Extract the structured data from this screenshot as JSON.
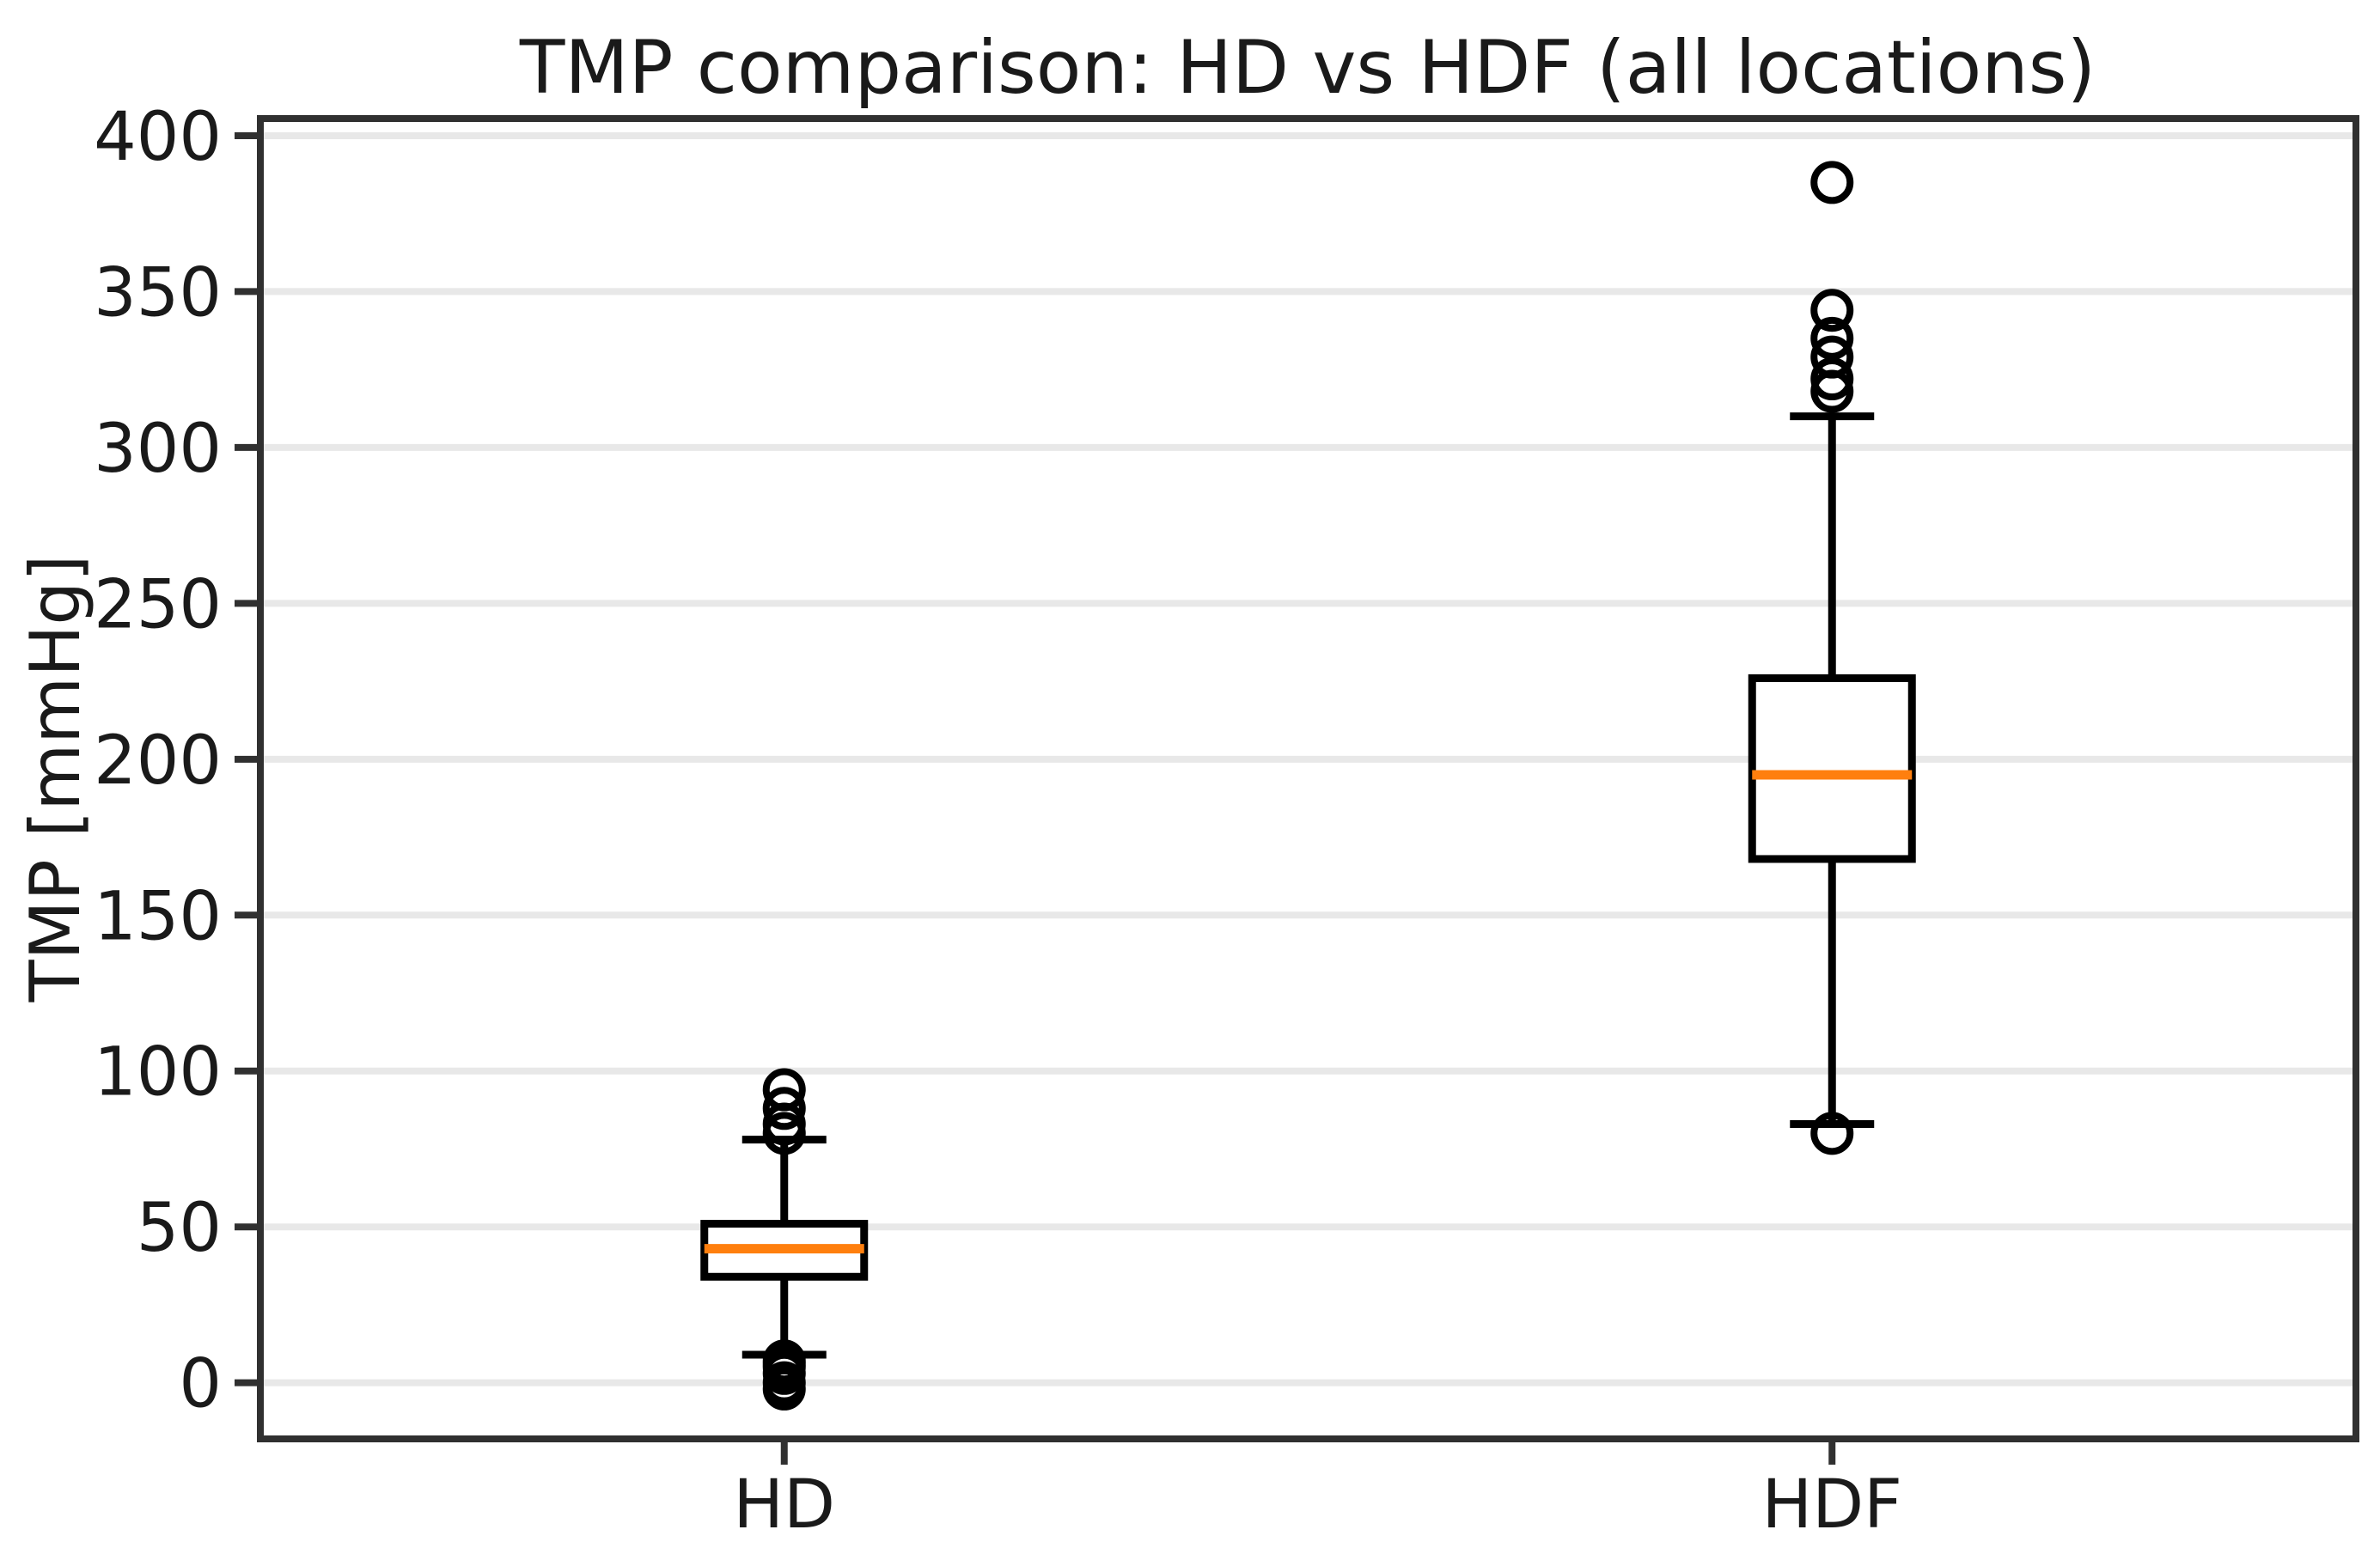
{
  "page": {
    "background": "#ffffff"
  },
  "chart_data": {
    "type": "boxplot",
    "title": "TMP comparison: HD vs HDF (all locations)",
    "ylabel": "TMP [mmHg]",
    "xlabel": "",
    "categories": [
      "HD",
      "HDF"
    ],
    "y_ticks": [
      0,
      50,
      100,
      150,
      200,
      250,
      300,
      350,
      400
    ],
    "ylim": [
      -18,
      405.5
    ],
    "xlim": [
      0.5,
      2.5
    ],
    "grid": "horizontal-only",
    "legend_position": "none",
    "series": [
      {
        "label": "HD",
        "position": 1,
        "whisker_low": 9,
        "q1": 34,
        "median": 43,
        "q3": 51,
        "whisker_high": 78,
        "outliers": [
          94,
          88,
          83,
          80,
          7,
          6,
          5,
          3,
          0,
          -2
        ]
      },
      {
        "label": "HDF",
        "position": 2,
        "whisker_low": 83,
        "q1": 168,
        "median": 195,
        "q3": 226,
        "whisker_high": 310,
        "outliers": [
          385,
          344,
          335,
          329,
          322,
          318,
          80
        ]
      }
    ],
    "colors": {
      "median": "#ff7f0e",
      "box_line": "#000000",
      "box_fill": "#ffffff",
      "grid": "#e8e8e8",
      "spine": "#303030",
      "text": "#1a1a1a",
      "background": "#ffffff"
    }
  }
}
